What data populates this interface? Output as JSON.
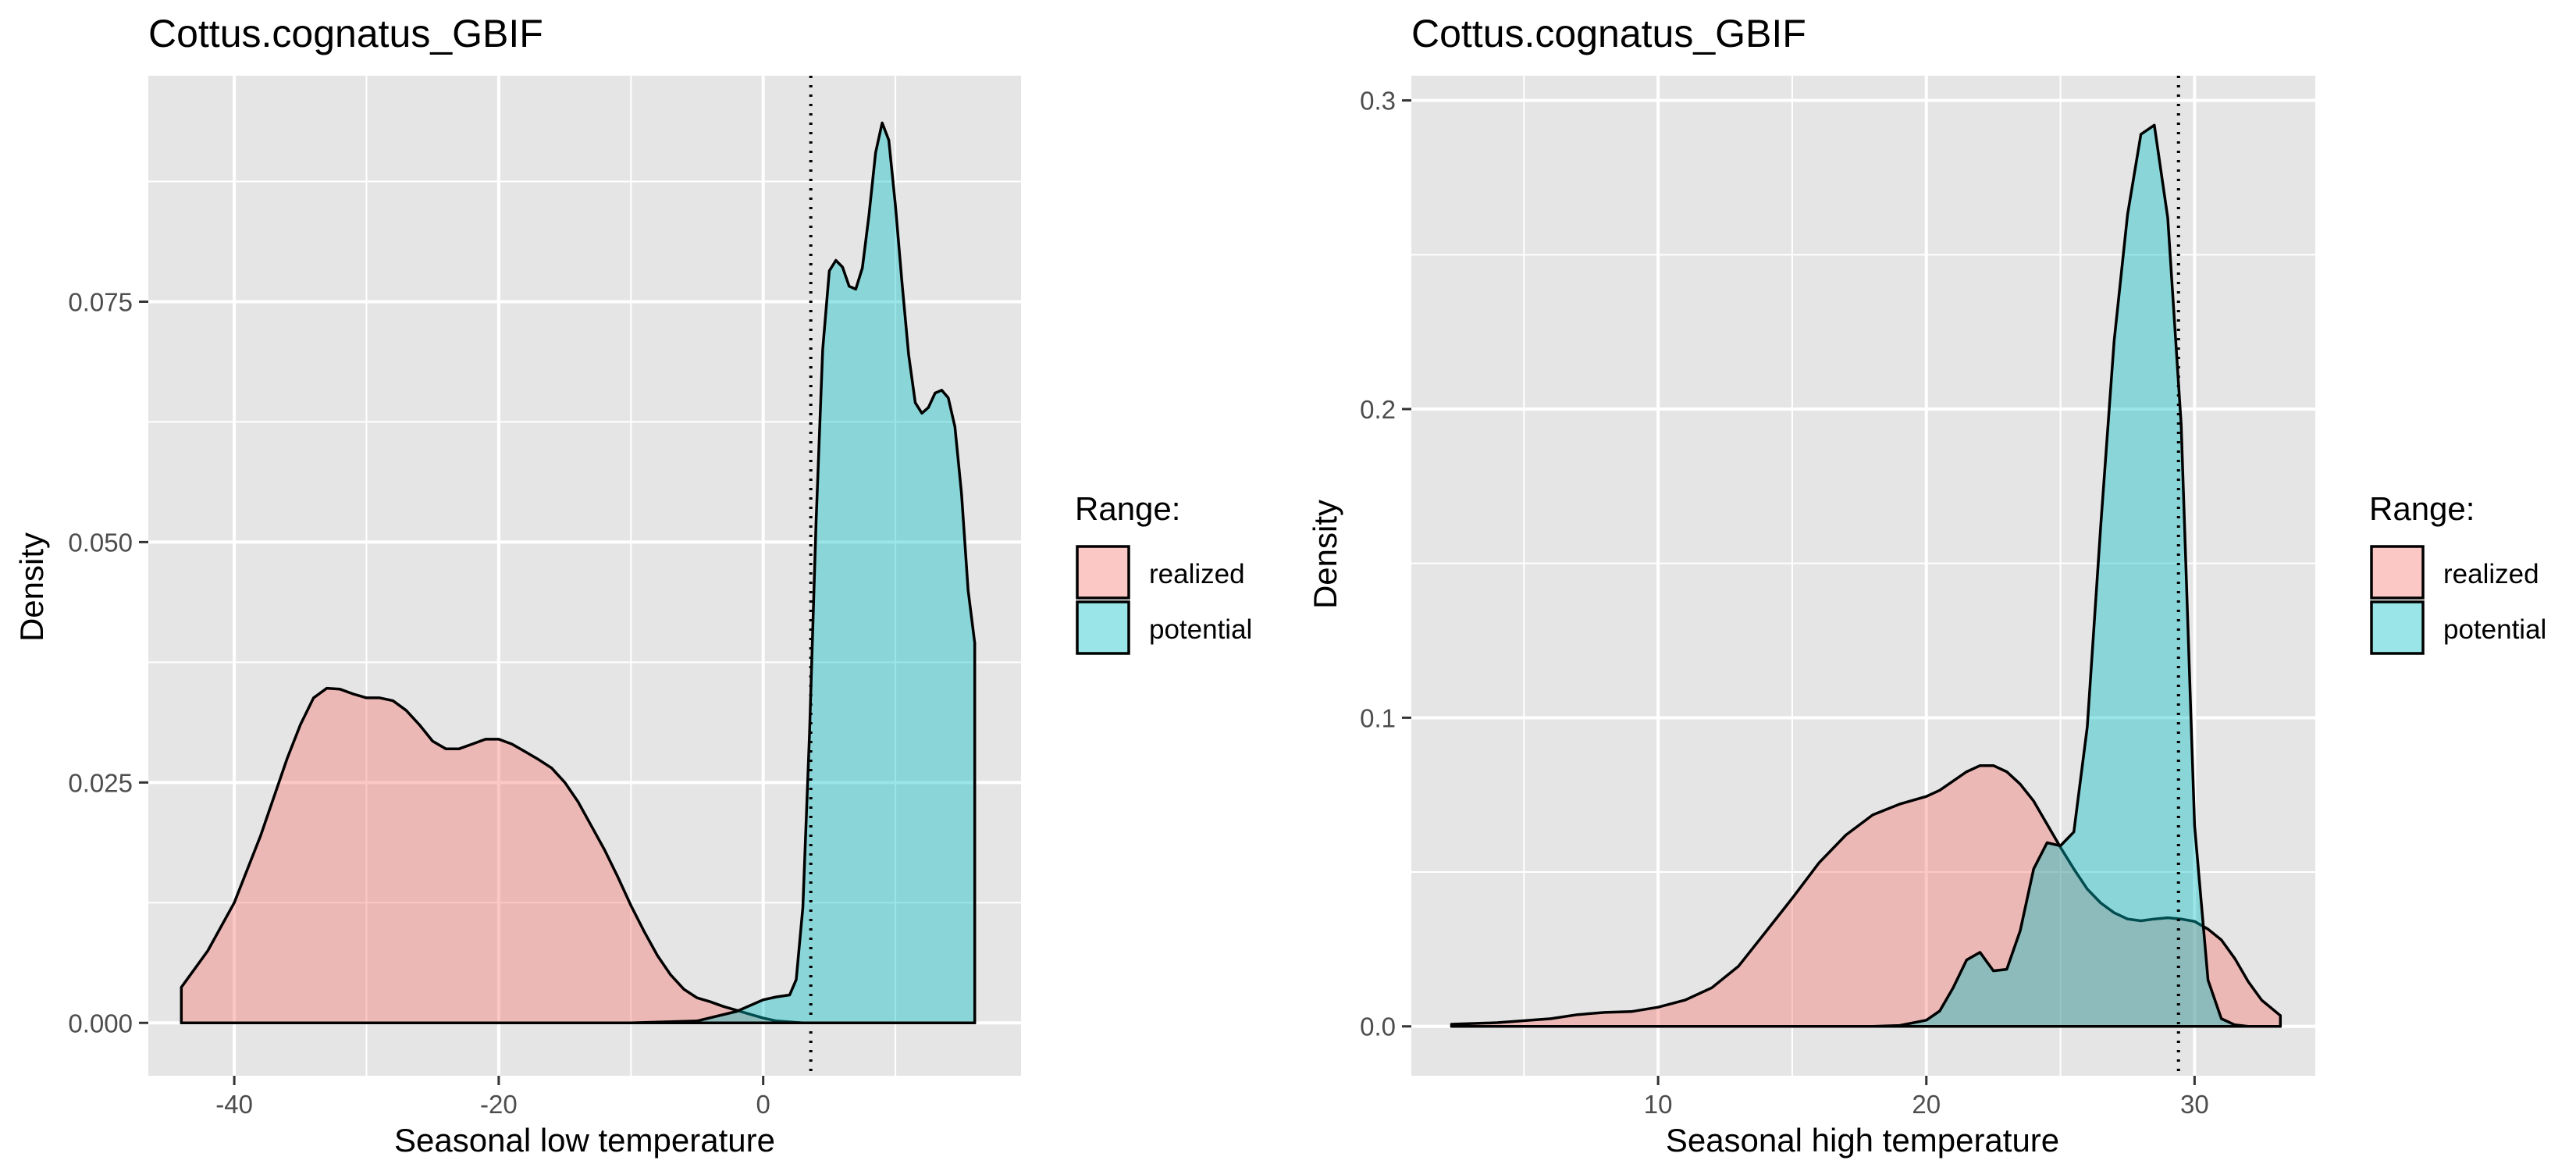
{
  "colors": {
    "panel_background": "#E5E5E5",
    "grid_line": "#FFFFFF",
    "realized": "#F8766D",
    "potential": "#00BFC4",
    "outline": "#000000",
    "fill_opacity": 0.4
  },
  "chart_data": [
    {
      "type": "area",
      "title": "Cottus.cognatus_GBIF",
      "xlabel": "Seasonal low temperature",
      "ylabel": "Density",
      "xlim": [
        -46.5,
        19.5
      ],
      "ylim": [
        -0.0055,
        0.0985
      ],
      "x_ticks": [
        -40,
        -20,
        0
      ],
      "x_tick_labels": [
        "-40",
        "-20",
        "0"
      ],
      "y_ticks": [
        0.0,
        0.025,
        0.05,
        0.075
      ],
      "y_tick_labels": [
        "0.000",
        "0.025",
        "0.050",
        "0.075"
      ],
      "grid": true,
      "vline": {
        "x": 3.6,
        "style": "dotted"
      },
      "legend": {
        "title": "Range:",
        "placement": "right",
        "entries": [
          "realized",
          "potential"
        ]
      },
      "series": [
        {
          "name": "realized",
          "color_key": "realized",
          "x": [
            -44.0,
            -42.0,
            -40.0,
            -38.0,
            -36.0,
            -35.0,
            -34.0,
            -33.0,
            -32.0,
            -31.0,
            -30.0,
            -29.0,
            -28.0,
            -27.0,
            -26.0,
            -25.0,
            -24.0,
            -23.0,
            -22.0,
            -21.0,
            -20.0,
            -19.0,
            -18.0,
            -17.0,
            -16.0,
            -15.0,
            -14.0,
            -13.0,
            -12.0,
            -11.0,
            -10.0,
            -9.0,
            -8.0,
            -7.0,
            -6.0,
            -5.0,
            -4.0,
            -3.0,
            -2.0,
            -1.0,
            0.0,
            1.0,
            2.0,
            3.0,
            4.0,
            5.0,
            6.0,
            7.0,
            8.0,
            9.0,
            10.0,
            11.0,
            12.0,
            13.0,
            14.0,
            15.0,
            16.0
          ],
          "y": [
            0.0037,
            0.0075,
            0.0125,
            0.0195,
            0.0275,
            0.031,
            0.0338,
            0.0348,
            0.0347,
            0.0342,
            0.0338,
            0.0338,
            0.0335,
            0.0325,
            0.031,
            0.0293,
            0.0285,
            0.0285,
            0.029,
            0.0295,
            0.0295,
            0.029,
            0.0282,
            0.0274,
            0.0265,
            0.025,
            0.023,
            0.0205,
            0.018,
            0.0152,
            0.0122,
            0.0095,
            0.007,
            0.005,
            0.0035,
            0.0026,
            0.0022,
            0.0017,
            0.0013,
            0.0009,
            0.0005,
            0.0002,
            0.0001,
            0.0,
            0.0,
            0.0,
            0.0,
            0.0,
            0.0,
            0.0,
            0.0,
            0.0,
            0.0,
            0.0,
            0.0,
            0.0,
            0.0
          ]
        },
        {
          "name": "potential",
          "color_key": "potential",
          "x": [
            -44.0,
            -10.0,
            -5.0,
            -2.0,
            0.0,
            1.0,
            2.0,
            2.5,
            3.0,
            3.5,
            4.0,
            4.5,
            5.0,
            5.5,
            6.0,
            6.5,
            7.0,
            7.5,
            8.0,
            8.5,
            9.0,
            9.5,
            10.0,
            10.5,
            11.0,
            11.5,
            12.0,
            12.5,
            13.0,
            13.5,
            14.0,
            14.5,
            15.0,
            15.5,
            16.0
          ],
          "y": [
            0.0,
            0.0,
            0.0002,
            0.0012,
            0.0024,
            0.0027,
            0.0029,
            0.0045,
            0.012,
            0.03,
            0.052,
            0.07,
            0.0782,
            0.0793,
            0.0786,
            0.0766,
            0.0763,
            0.0785,
            0.084,
            0.0905,
            0.0936,
            0.0918,
            0.085,
            0.077,
            0.0695,
            0.0645,
            0.0634,
            0.064,
            0.0655,
            0.0658,
            0.065,
            0.062,
            0.055,
            0.045,
            0.0395
          ]
        }
      ]
    },
    {
      "type": "area",
      "title": "Cottus.cognatus_GBIF",
      "xlabel": "Seasonal high temperature",
      "ylabel": "Density",
      "xlim": [
        0.8,
        34.5
      ],
      "ylim": [
        -0.016,
        0.308
      ],
      "x_ticks": [
        10,
        20,
        30
      ],
      "x_tick_labels": [
        "10",
        "20",
        "30"
      ],
      "y_ticks": [
        0.0,
        0.1,
        0.2,
        0.3
      ],
      "y_tick_labels": [
        "0.0",
        "0.1",
        "0.2",
        "0.3"
      ],
      "grid": true,
      "vline": {
        "x": 29.4,
        "style": "dotted"
      },
      "legend": {
        "title": "Range:",
        "placement": "right",
        "entries": [
          "realized",
          "potential"
        ]
      },
      "series": [
        {
          "name": "realized",
          "color_key": "realized",
          "x": [
            2.3,
            4.0,
            6.0,
            7.0,
            8.0,
            9.0,
            10.0,
            11.0,
            12.0,
            13.0,
            14.0,
            15.0,
            16.0,
            17.0,
            18.0,
            19.0,
            20.0,
            20.5,
            21.0,
            21.5,
            22.0,
            22.5,
            23.0,
            23.5,
            24.0,
            24.5,
            25.0,
            25.5,
            26.0,
            26.5,
            27.0,
            27.5,
            28.0,
            28.5,
            29.0,
            29.5,
            30.0,
            30.5,
            31.0,
            31.5,
            32.0,
            32.5,
            33.2
          ],
          "y": [
            0.0007,
            0.0012,
            0.0025,
            0.0038,
            0.0045,
            0.0048,
            0.0062,
            0.0085,
            0.0125,
            0.0195,
            0.0305,
            0.0415,
            0.053,
            0.062,
            0.0685,
            0.072,
            0.0745,
            0.0765,
            0.0795,
            0.0825,
            0.0845,
            0.0845,
            0.0825,
            0.0785,
            0.073,
            0.0655,
            0.058,
            0.051,
            0.0445,
            0.04,
            0.0368,
            0.0348,
            0.0342,
            0.0348,
            0.0352,
            0.0348,
            0.034,
            0.0315,
            0.028,
            0.022,
            0.0145,
            0.0085,
            0.0035
          ]
        },
        {
          "name": "potential",
          "color_key": "potential",
          "x": [
            2.3,
            18.0,
            19.0,
            20.0,
            20.5,
            21.0,
            21.5,
            22.0,
            22.5,
            23.0,
            23.5,
            24.0,
            24.5,
            25.0,
            25.5,
            26.0,
            26.5,
            27.0,
            27.5,
            28.0,
            28.5,
            29.0,
            29.5,
            30.0,
            30.5,
            31.0,
            31.5,
            32.0,
            32.5,
            33.2
          ],
          "y": [
            0.0,
            0.0,
            0.0003,
            0.002,
            0.005,
            0.0125,
            0.0215,
            0.024,
            0.018,
            0.0185,
            0.031,
            0.051,
            0.0595,
            0.0585,
            0.063,
            0.097,
            0.162,
            0.222,
            0.263,
            0.289,
            0.292,
            0.262,
            0.195,
            0.065,
            0.015,
            0.0025,
            0.0005,
            0.0,
            0.0,
            0.0
          ]
        }
      ]
    }
  ]
}
